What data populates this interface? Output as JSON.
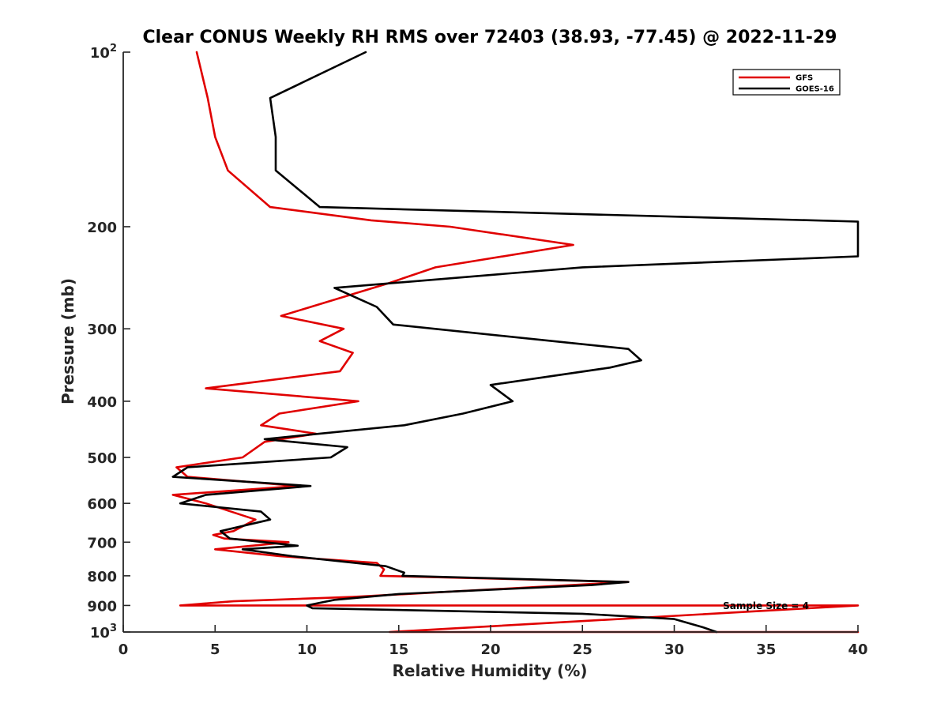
{
  "chart_data": {
    "type": "line",
    "title": "Clear CONUS Weekly RH RMS over 72403 (38.93, -77.45) @ 2022-11-29",
    "xlabel": "Relative Humidity (%)",
    "ylabel": "Pressure (mb)",
    "xlim": [
      0,
      40
    ],
    "ylim": [
      100,
      1000
    ],
    "yscale": "log",
    "y_reversed": true,
    "grid": false,
    "legend_position": "top-right",
    "x_ticks": [
      "0",
      "5",
      "10",
      "15",
      "20",
      "25",
      "30",
      "35",
      "40"
    ],
    "y_ticks": [
      {
        "value": 100,
        "base": "10",
        "exp": "2"
      },
      {
        "value": 200,
        "label": "200"
      },
      {
        "value": 300,
        "label": "300"
      },
      {
        "value": 400,
        "label": "400"
      },
      {
        "value": 500,
        "label": "500"
      },
      {
        "value": 600,
        "label": "600"
      },
      {
        "value": 700,
        "label": "700"
      },
      {
        "value": 800,
        "label": "800"
      },
      {
        "value": 900,
        "label": "900"
      },
      {
        "value": 1000,
        "base": "10",
        "exp": "3"
      }
    ],
    "annotation": "Sample Size = 4",
    "series": [
      {
        "name": "GFS",
        "color": "#e00000",
        "points": [
          [
            4.0,
            100
          ],
          [
            4.6,
            120
          ],
          [
            5.0,
            140
          ],
          [
            5.7,
            160
          ],
          [
            8.0,
            185
          ],
          [
            13.5,
            195
          ],
          [
            17.8,
            200
          ],
          [
            24.5,
            215
          ],
          [
            17.0,
            235
          ],
          [
            14.5,
            250
          ],
          [
            8.6,
            285
          ],
          [
            12.0,
            300
          ],
          [
            10.7,
            315
          ],
          [
            12.5,
            330
          ],
          [
            11.8,
            355
          ],
          [
            4.5,
            380
          ],
          [
            12.8,
            400
          ],
          [
            8.5,
            420
          ],
          [
            7.5,
            440
          ],
          [
            10.5,
            455
          ],
          [
            7.7,
            470
          ],
          [
            6.5,
            500
          ],
          [
            2.9,
            520
          ],
          [
            3.5,
            540
          ],
          [
            9.5,
            560
          ],
          [
            2.7,
            580
          ],
          [
            4.5,
            600
          ],
          [
            7.2,
            640
          ],
          [
            6.0,
            670
          ],
          [
            4.9,
            680
          ],
          [
            5.5,
            690
          ],
          [
            9.0,
            700
          ],
          [
            5.0,
            720
          ],
          [
            8.5,
            740
          ],
          [
            13.8,
            760
          ],
          [
            14.2,
            780
          ],
          [
            14.0,
            800
          ],
          [
            27.5,
            820
          ],
          [
            12.5,
            870
          ],
          [
            6.0,
            885
          ],
          [
            3.1,
            900
          ],
          [
            40.0,
            900
          ],
          [
            14.5,
            1000
          ],
          [
            40.0,
            1000
          ]
        ]
      },
      {
        "name": "GOES-16",
        "color": "#000000",
        "points": [
          [
            13.2,
            100
          ],
          [
            8.0,
            120
          ],
          [
            8.3,
            140
          ],
          [
            8.3,
            160
          ],
          [
            10.7,
            185
          ],
          [
            40.0,
            196
          ],
          [
            40.0,
            225
          ],
          [
            25.0,
            235
          ],
          [
            11.5,
            255
          ],
          [
            13.8,
            275
          ],
          [
            14.7,
            295
          ],
          [
            27.5,
            325
          ],
          [
            28.2,
            340
          ],
          [
            26.5,
            350
          ],
          [
            20.0,
            375
          ],
          [
            21.2,
            400
          ],
          [
            18.5,
            420
          ],
          [
            15.3,
            440
          ],
          [
            7.7,
            465
          ],
          [
            12.2,
            480
          ],
          [
            11.3,
            500
          ],
          [
            3.5,
            520
          ],
          [
            2.7,
            540
          ],
          [
            10.2,
            560
          ],
          [
            4.5,
            580
          ],
          [
            3.1,
            600
          ],
          [
            7.5,
            620
          ],
          [
            8.0,
            640
          ],
          [
            5.3,
            670
          ],
          [
            5.8,
            690
          ],
          [
            9.5,
            710
          ],
          [
            6.5,
            720
          ],
          [
            9.2,
            740
          ],
          [
            14.3,
            770
          ],
          [
            15.3,
            790
          ],
          [
            15.2,
            800
          ],
          [
            27.5,
            820
          ],
          [
            25.5,
            830
          ],
          [
            15.0,
            860
          ],
          [
            11.5,
            880
          ],
          [
            10.0,
            900
          ],
          [
            10.3,
            910
          ],
          [
            25.0,
            930
          ],
          [
            30.0,
            950
          ],
          [
            31.5,
            980
          ],
          [
            32.3,
            1000
          ]
        ]
      }
    ]
  }
}
